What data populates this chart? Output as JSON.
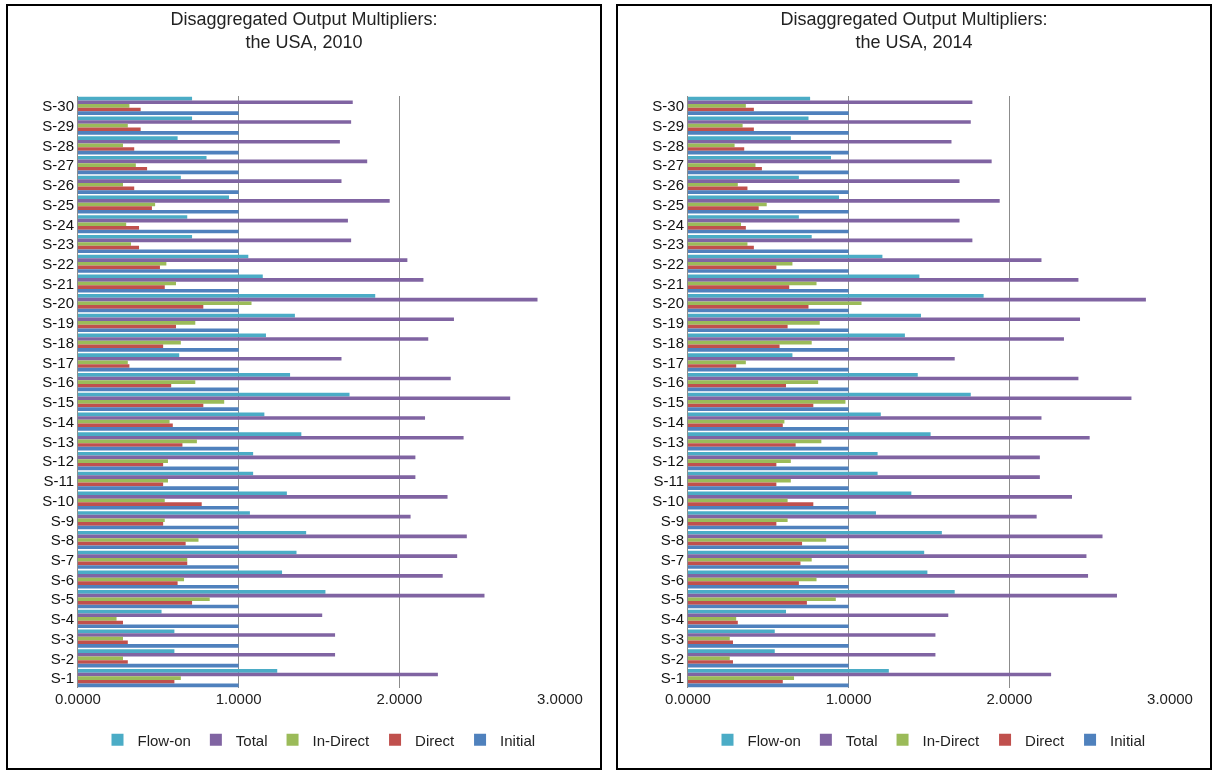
{
  "chart_data": [
    {
      "type": "bar",
      "orientation": "horizontal",
      "title": "Disaggregated Output Multipliers:\nthe USA, 2010",
      "categories": [
        "S-30",
        "S-29",
        "S-28",
        "S-27",
        "S-26",
        "S-25",
        "S-24",
        "S-23",
        "S-22",
        "S-21",
        "S-20",
        "S-19",
        "S-18",
        "S-17",
        "S-16",
        "S-15",
        "S-14",
        "S-13",
        "S-12",
        "S-11",
        "S-10",
        "S-9",
        "S-8",
        "S-7",
        "S-6",
        "S-5",
        "S-4",
        "S-3",
        "S-2",
        "S-1"
      ],
      "series": [
        {
          "name": "Flow-on",
          "color": "#4bacc6",
          "values": [
            0.71,
            0.71,
            0.62,
            0.8,
            0.64,
            0.94,
            0.68,
            0.71,
            1.06,
            1.15,
            1.85,
            1.35,
            1.17,
            0.63,
            1.32,
            1.69,
            1.16,
            1.39,
            1.09,
            1.09,
            1.3,
            1.07,
            1.42,
            1.36,
            1.27,
            1.54,
            0.52,
            0.6,
            0.6,
            1.24
          ]
        },
        {
          "name": "Total",
          "color": "#8064a2",
          "values": [
            1.71,
            1.7,
            1.63,
            1.8,
            1.64,
            1.94,
            1.68,
            1.7,
            2.05,
            2.15,
            2.86,
            2.34,
            2.18,
            1.64,
            2.32,
            2.69,
            2.16,
            2.4,
            2.1,
            2.1,
            2.3,
            2.07,
            2.42,
            2.36,
            2.27,
            2.53,
            1.52,
            1.6,
            1.6,
            2.24
          ]
        },
        {
          "name": "In-Direct",
          "color": "#9bbb59",
          "values": [
            0.32,
            0.31,
            0.28,
            0.36,
            0.28,
            0.48,
            0.3,
            0.33,
            0.55,
            0.61,
            1.08,
            0.73,
            0.64,
            0.31,
            0.73,
            0.91,
            0.57,
            0.74,
            0.56,
            0.56,
            0.54,
            0.54,
            0.75,
            0.68,
            0.66,
            0.82,
            0.24,
            0.28,
            0.28,
            0.64
          ]
        },
        {
          "name": "Direct",
          "color": "#c0504d",
          "values": [
            0.39,
            0.39,
            0.35,
            0.43,
            0.35,
            0.46,
            0.38,
            0.38,
            0.51,
            0.54,
            0.78,
            0.61,
            0.53,
            0.32,
            0.58,
            0.78,
            0.59,
            0.65,
            0.53,
            0.53,
            0.77,
            0.53,
            0.67,
            0.68,
            0.62,
            0.71,
            0.28,
            0.31,
            0.31,
            0.6
          ]
        },
        {
          "name": "Initial",
          "color": "#4f81bd",
          "values": [
            1,
            1,
            1,
            1,
            1,
            1,
            1,
            1,
            1,
            1,
            1,
            1,
            1,
            1,
            1,
            1,
            1,
            1,
            1,
            1,
            1,
            1,
            1,
            1,
            1,
            1,
            1,
            1,
            1,
            1
          ]
        }
      ],
      "xlim": [
        0,
        3
      ],
      "xticks": [
        {
          "value": 0,
          "label": "0.0000"
        },
        {
          "value": 1,
          "label": "1.0000"
        },
        {
          "value": 2,
          "label": "2.0000"
        },
        {
          "value": 3,
          "label": "3.0000"
        }
      ],
      "grid": "x",
      "legend": "bottom"
    },
    {
      "type": "bar",
      "orientation": "horizontal",
      "title": "Disaggregated Output Multipliers:\nthe USA, 2014",
      "categories": [
        "S-30",
        "S-29",
        "S-28",
        "S-27",
        "S-26",
        "S-25",
        "S-24",
        "S-23",
        "S-22",
        "S-21",
        "S-20",
        "S-19",
        "S-18",
        "S-17",
        "S-16",
        "S-15",
        "S-14",
        "S-13",
        "S-12",
        "S-11",
        "S-10",
        "S-9",
        "S-8",
        "S-7",
        "S-6",
        "S-5",
        "S-4",
        "S-3",
        "S-2",
        "S-1"
      ],
      "series": [
        {
          "name": "Flow-on",
          "color": "#4bacc6",
          "values": [
            0.76,
            0.75,
            0.64,
            0.89,
            0.69,
            0.94,
            0.69,
            0.77,
            1.21,
            1.44,
            1.84,
            1.45,
            1.35,
            0.65,
            1.43,
            1.76,
            1.2,
            1.51,
            1.18,
            1.18,
            1.39,
            1.17,
            1.58,
            1.47,
            1.49,
            1.66,
            0.61,
            0.54,
            0.54,
            1.25
          ]
        },
        {
          "name": "Total",
          "color": "#8064a2",
          "values": [
            1.77,
            1.76,
            1.64,
            1.89,
            1.69,
            1.94,
            1.69,
            1.77,
            2.2,
            2.43,
            2.85,
            2.44,
            2.34,
            1.66,
            2.43,
            2.76,
            2.2,
            2.5,
            2.19,
            2.19,
            2.39,
            2.17,
            2.58,
            2.48,
            2.49,
            2.67,
            1.62,
            1.54,
            1.54,
            2.26
          ]
        },
        {
          "name": "In-Direct",
          "color": "#9bbb59",
          "values": [
            0.36,
            0.34,
            0.29,
            0.42,
            0.31,
            0.49,
            0.33,
            0.37,
            0.65,
            0.8,
            1.08,
            0.82,
            0.77,
            0.36,
            0.81,
            0.98,
            0.6,
            0.83,
            0.64,
            0.64,
            0.62,
            0.62,
            0.86,
            0.77,
            0.8,
            0.92,
            0.3,
            0.26,
            0.26,
            0.66
          ]
        },
        {
          "name": "Direct",
          "color": "#c0504d",
          "values": [
            0.41,
            0.41,
            0.35,
            0.46,
            0.37,
            0.44,
            0.36,
            0.41,
            0.55,
            0.63,
            0.75,
            0.62,
            0.57,
            0.3,
            0.61,
            0.78,
            0.59,
            0.67,
            0.55,
            0.55,
            0.78,
            0.55,
            0.71,
            0.7,
            0.69,
            0.74,
            0.31,
            0.28,
            0.28,
            0.59
          ]
        },
        {
          "name": "Initial",
          "color": "#4f81bd",
          "values": [
            1,
            1,
            1,
            1,
            1,
            1,
            1,
            1,
            1,
            1,
            1,
            1,
            1,
            1,
            1,
            1,
            1,
            1,
            1,
            1,
            1,
            1,
            1,
            1,
            1,
            1,
            1,
            1,
            1,
            1
          ]
        }
      ],
      "xlim": [
        0,
        3
      ],
      "xticks": [
        {
          "value": 0,
          "label": "0.0000"
        },
        {
          "value": 1,
          "label": "1.0000"
        },
        {
          "value": 2,
          "label": "2.0000"
        },
        {
          "value": 3,
          "label": "3.0000"
        }
      ],
      "grid": "x",
      "legend": "bottom"
    }
  ]
}
